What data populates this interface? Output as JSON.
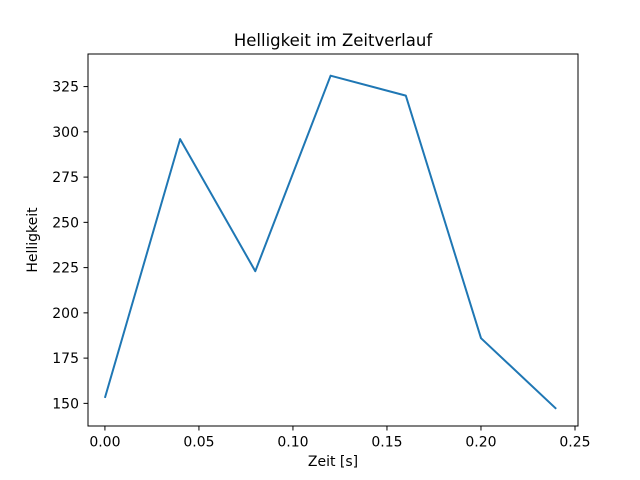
{
  "chart_data": {
    "type": "line",
    "title": "Helligkeit im Zeitverlauf",
    "xlabel": "Zeit [s]",
    "ylabel": "Helligkeit",
    "x": [
      0.0,
      0.04,
      0.08,
      0.12,
      0.16,
      0.2,
      0.24
    ],
    "y": [
      153,
      296,
      223,
      331,
      320,
      186,
      147
    ],
    "xlim": [
      -0.009,
      0.2516
    ],
    "ylim": [
      137.5,
      343.0
    ],
    "xticks": [
      0.0,
      0.05,
      0.1,
      0.15,
      0.2,
      0.25
    ],
    "xtick_labels": [
      "0.00",
      "0.05",
      "0.10",
      "0.15",
      "0.20",
      "0.25"
    ],
    "yticks": [
      150,
      175,
      200,
      225,
      250,
      275,
      300,
      325
    ],
    "ytick_labels": [
      "150",
      "175",
      "200",
      "225",
      "250",
      "275",
      "300",
      "325"
    ],
    "line_color": "#1f77b4",
    "axis_color": "#000000",
    "background_color": "#ffffff",
    "grid": false,
    "legend": "none"
  }
}
